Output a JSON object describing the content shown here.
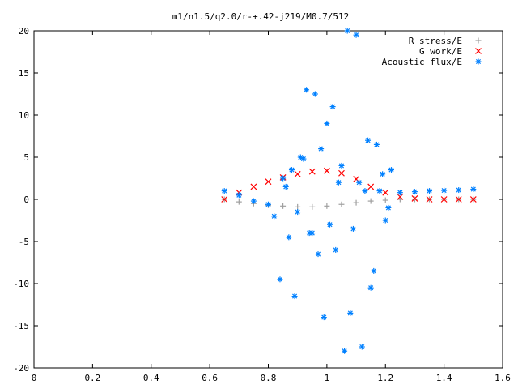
{
  "chart_data": {
    "type": "scatter",
    "title": "m1/n1.5/q2.0/r-+.42-j219/M0.7/512",
    "xlabel": "",
    "ylabel": "",
    "xlim": [
      0,
      1.6
    ],
    "ylim": [
      -20,
      20
    ],
    "grid": false,
    "legend_position": "top-right",
    "x_ticks": [
      "0",
      "0.2",
      "0.4",
      "0.6",
      "0.8",
      "1",
      "1.2",
      "1.4",
      "1.6"
    ],
    "y_ticks": [
      "20",
      "15",
      "10",
      "5",
      "0",
      "-5",
      "-10",
      "-15",
      "-20"
    ],
    "series": [
      {
        "name": "R stress/E",
        "marker": "+",
        "color": "#a0a0a0",
        "x": [
          0.65,
          0.7,
          0.75,
          0.8,
          0.85,
          0.9,
          0.95,
          1.0,
          1.05,
          1.1,
          1.15,
          1.2,
          1.25,
          1.3,
          1.35,
          1.4,
          1.45,
          1.5
        ],
        "y": [
          0.0,
          -0.3,
          -0.5,
          -0.7,
          -0.8,
          -0.9,
          -0.9,
          -0.8,
          -0.6,
          -0.4,
          -0.2,
          -0.1,
          0.0,
          0.0,
          0.0,
          0.0,
          0.0,
          0.0
        ]
      },
      {
        "name": "G work/E",
        "marker": "x",
        "color": "#ff0000",
        "x": [
          0.65,
          0.7,
          0.75,
          0.8,
          0.85,
          0.9,
          0.95,
          1.0,
          1.05,
          1.1,
          1.15,
          1.2,
          1.25,
          1.3,
          1.35,
          1.4,
          1.45,
          1.5
        ],
        "y": [
          0.0,
          0.8,
          1.5,
          2.1,
          2.6,
          3.0,
          3.3,
          3.4,
          3.1,
          2.4,
          1.5,
          0.8,
          0.3,
          0.1,
          0.0,
          0.0,
          0.0,
          0.0
        ]
      },
      {
        "name": "Acoustic flux/E",
        "marker": "*",
        "color": "#0080ff",
        "x": [
          0.65,
          0.7,
          0.75,
          0.8,
          1.25,
          1.3,
          1.35,
          1.4,
          1.45,
          1.5,
          0.82,
          0.85,
          0.87,
          0.88,
          0.9,
          0.92,
          0.93,
          0.95,
          0.96,
          0.98,
          0.99,
          1.0,
          1.01,
          1.02,
          1.03,
          1.05,
          1.06,
          1.07,
          1.08,
          1.1,
          1.11,
          1.12,
          1.14,
          1.15,
          1.17,
          1.18,
          1.2,
          1.22,
          0.84,
          0.86,
          0.89,
          0.91,
          0.94,
          0.97,
          1.04,
          1.09,
          1.13,
          1.16,
          1.19,
          1.21
        ],
        "y": [
          1.0,
          0.5,
          -0.2,
          -0.6,
          0.8,
          0.9,
          1.0,
          1.05,
          1.1,
          1.2,
          -2.0,
          2.5,
          -4.5,
          3.5,
          -1.5,
          4.8,
          13.0,
          -4.0,
          12.5,
          6.0,
          -14.0,
          9.0,
          -3.0,
          11.0,
          -6.0,
          4.0,
          -18.0,
          20.0,
          -13.5,
          19.5,
          2.0,
          -17.5,
          7.0,
          -10.5,
          6.5,
          1.0,
          -2.5,
          3.5,
          -9.5,
          1.5,
          -11.5,
          5.0,
          -4.0,
          -6.5,
          2.0,
          -3.5,
          1.0,
          -8.5,
          3.0,
          -1.0
        ]
      }
    ]
  }
}
